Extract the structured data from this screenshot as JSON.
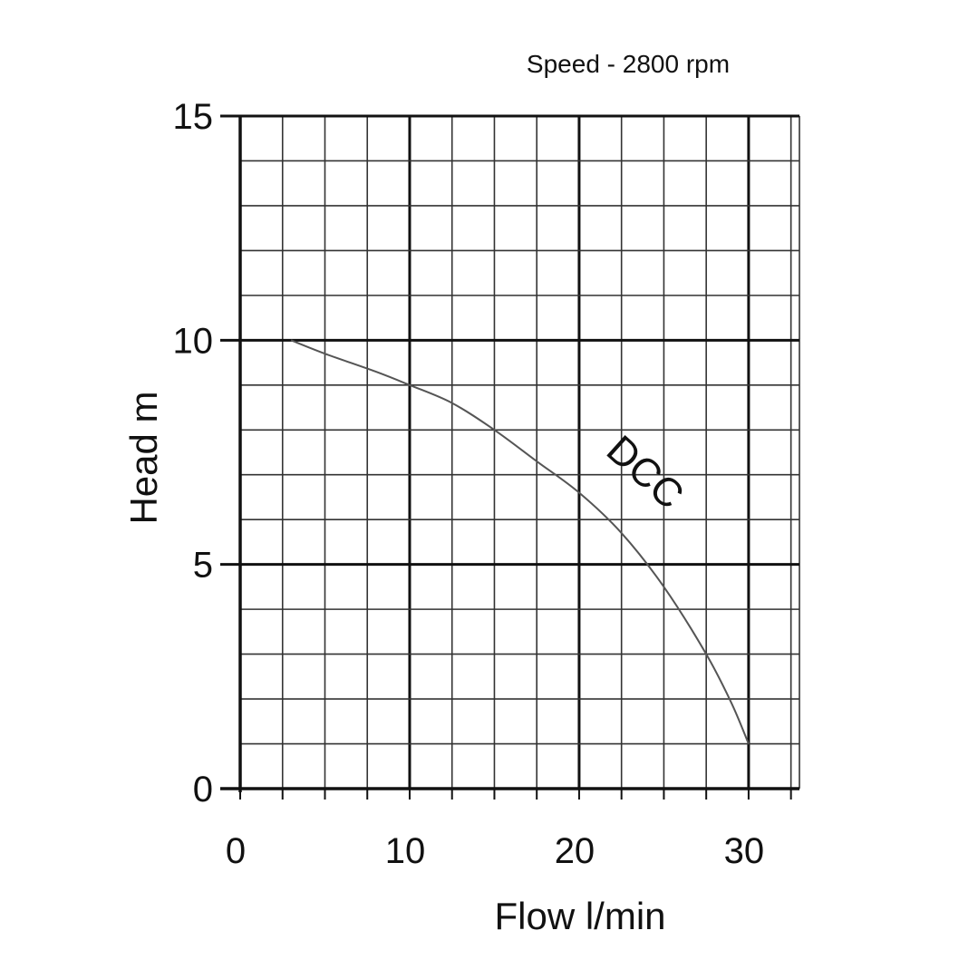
{
  "chart_data": {
    "type": "line",
    "subtitle": "Speed - 2800 rpm",
    "xlabel": "Flow l/min",
    "ylabel": "Head m",
    "xlim": [
      0,
      33
    ],
    "ylim": [
      0,
      15
    ],
    "x_ticks": [
      0,
      10,
      20,
      30
    ],
    "y_ticks": [
      0,
      5,
      10,
      15
    ],
    "x_minor_step": 2.5,
    "y_minor_step": 1,
    "grid": true,
    "series": [
      {
        "name": "DCC",
        "x": [
          3,
          5,
          8,
          10,
          12.5,
          15,
          17.5,
          20,
          22.5,
          25,
          27.5,
          29,
          30
        ],
        "y": [
          10,
          9.7,
          9.3,
          9.0,
          8.6,
          8.0,
          7.3,
          6.6,
          5.7,
          4.5,
          3.0,
          1.9,
          1.0
        ]
      }
    ],
    "colors": {
      "grid": "#333333",
      "major_grid": "#111111",
      "curve": "#555555",
      "text": "#111111"
    }
  }
}
